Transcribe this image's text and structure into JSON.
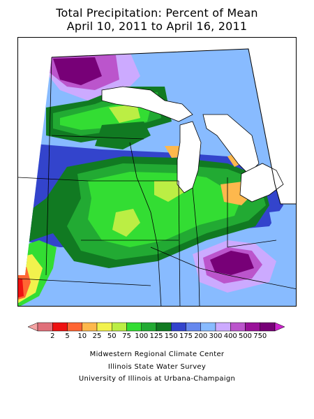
{
  "title": {
    "line1": "Total Precipitation: Percent of Mean",
    "line2": "April 10, 2011 to April 16, 2011"
  },
  "legend": {
    "bins": [
      {
        "color": "#f4a3a3"
      },
      {
        "color": "#e0707a"
      },
      {
        "color": "#ee1111"
      },
      {
        "color": "#ff6633"
      },
      {
        "color": "#fdb84d"
      },
      {
        "color": "#f2f24d"
      },
      {
        "color": "#bbee44"
      },
      {
        "color": "#33dd33"
      },
      {
        "color": "#22aa33"
      },
      {
        "color": "#117a22"
      },
      {
        "color": "#3344cc"
      },
      {
        "color": "#6688ee"
      },
      {
        "color": "#88bbff"
      },
      {
        "color": "#ccaaff"
      },
      {
        "color": "#bb55cc"
      },
      {
        "color": "#991199"
      },
      {
        "color": "#770077"
      },
      {
        "color": "#cc22cc"
      }
    ],
    "ticks": [
      "2",
      "5",
      "10",
      "25",
      "50",
      "75",
      "100",
      "125",
      "150",
      "175",
      "200",
      "300",
      "400",
      "500",
      "750"
    ]
  },
  "credits": {
    "line1": "Midwestern Regional Climate Center",
    "line2": "Illinois State Water Survey",
    "line3": "University of Illinois at Urbana-Champaign"
  }
}
